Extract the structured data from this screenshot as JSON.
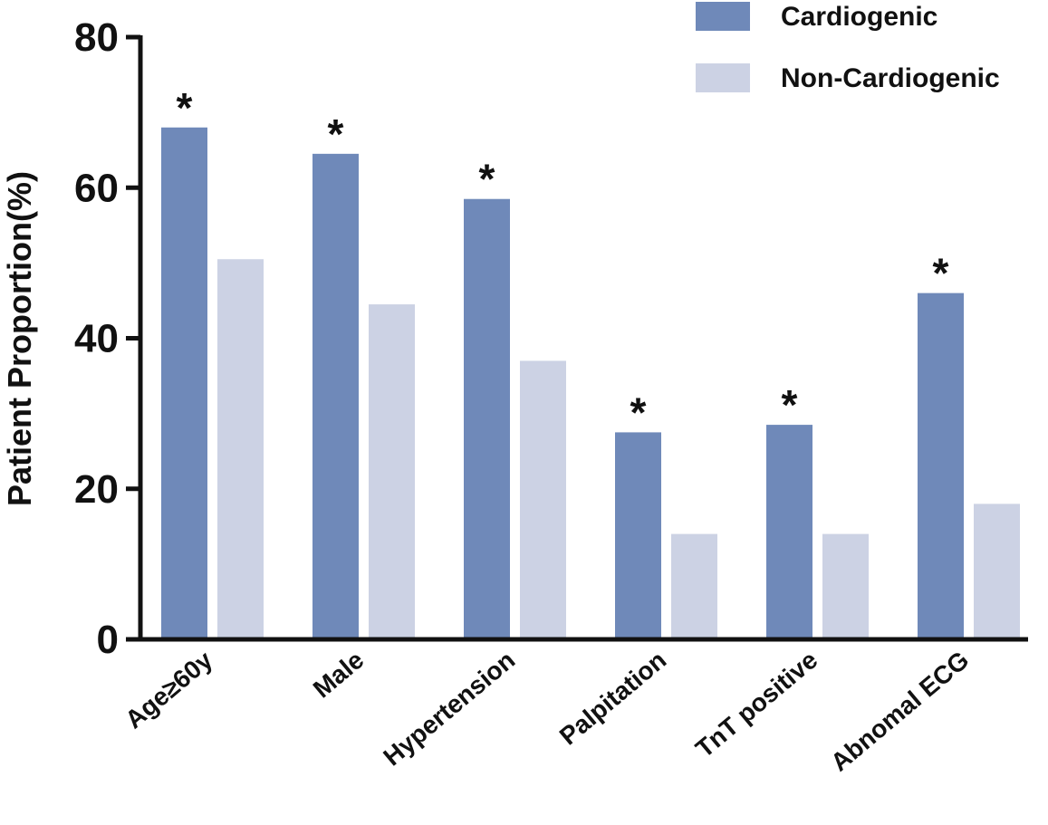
{
  "chart_data": {
    "type": "bar",
    "title": "",
    "xlabel": "",
    "ylabel": "Patient Proportion(%)",
    "ylim": [
      0,
      80
    ],
    "yticks": [
      "0",
      "20",
      "40",
      "60",
      "80"
    ],
    "categories": [
      "Age≥60y",
      "Male",
      "Hypertension",
      "Palpitation",
      "TnT positive",
      "Abnomal ECG"
    ],
    "series": [
      {
        "name": "Cardiogenic",
        "color": "#6f89b9",
        "values": [
          68,
          64.5,
          58.5,
          27.5,
          28.5,
          46
        ]
      },
      {
        "name": "Non-Cardiogenic",
        "color": "#ccd2e4",
        "values": [
          50.5,
          44.5,
          37,
          14,
          14,
          18
        ]
      }
    ],
    "annotations": [
      "*",
      "*",
      "*",
      "*",
      "*",
      "*"
    ],
    "legend_position": "top-right",
    "grid": false
  }
}
